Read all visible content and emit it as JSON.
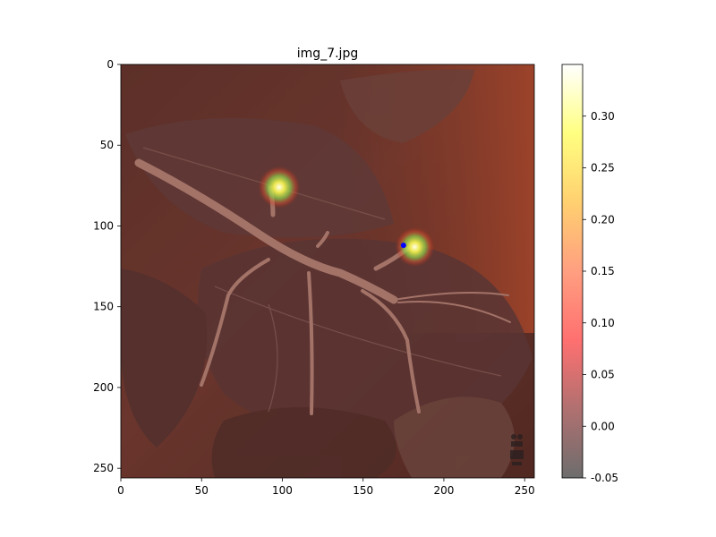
{
  "chart_data": {
    "type": "heatmap",
    "title": "img_7.jpg",
    "xlabel": "",
    "ylabel": "",
    "xlim": [
      0,
      256
    ],
    "ylim": [
      256,
      0
    ],
    "x_ticks": [
      0,
      50,
      100,
      150,
      200,
      250
    ],
    "y_ticks": [
      0,
      50,
      100,
      150,
      200,
      250
    ],
    "colorbar": {
      "range": [
        -0.05,
        0.35
      ],
      "ticks": [
        -0.05,
        0.0,
        0.05,
        0.1,
        0.15,
        0.2,
        0.25,
        0.3
      ],
      "tick_labels": [
        "-0.05",
        "0.00",
        "0.05",
        "0.10",
        "0.15",
        "0.20",
        "0.25",
        "0.30"
      ],
      "colormap": [
        "#6d6d6d",
        "#b07070",
        "#ff7070",
        "#ff9f80",
        "#ffd070",
        "#ffff80",
        "#ffffff"
      ]
    },
    "hotspots": [
      {
        "x": 98,
        "y": 76,
        "value": 0.32
      },
      {
        "x": 182,
        "y": 113,
        "value": 0.3
      }
    ],
    "marked_point": {
      "x": 175,
      "y": 112,
      "color": "#0000ff"
    },
    "grid": false
  }
}
